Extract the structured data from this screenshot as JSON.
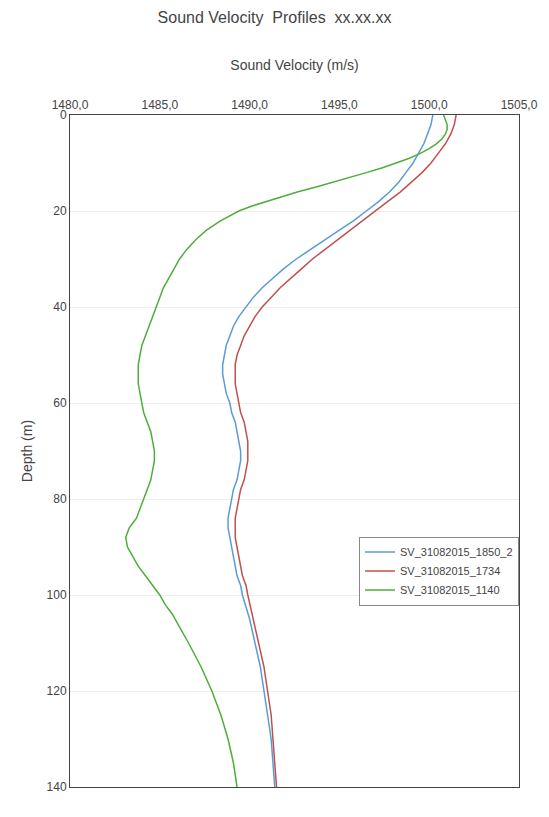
{
  "chart_data": {
    "type": "line",
    "title": "Sound Velocity  Profiles  xx.xx.xx",
    "xlabel": "Sound Velocity (m/s)",
    "ylabel": "Depth (m)",
    "xlim": [
      1480.0,
      1505.0
    ],
    "xticks": [
      {
        "value": 1480.0,
        "label": "1480,0"
      },
      {
        "value": 1485.0,
        "label": "1485,0"
      },
      {
        "value": 1490.0,
        "label": "1490,0"
      },
      {
        "value": 1495.0,
        "label": "1495,0"
      },
      {
        "value": 1500.0,
        "label": "1500,0"
      },
      {
        "value": 1505.0,
        "label": "1505,0"
      }
    ],
    "ylim": [
      140,
      0
    ],
    "yticks": [
      0,
      20,
      40,
      60,
      80,
      100,
      120,
      140
    ],
    "grid": "y",
    "legend": "lower right",
    "series": [
      {
        "name": "SV_31082015_1850_2",
        "color": "#5B9BD5",
        "x": [
          1500.2,
          1500.1,
          1499.9,
          1499.7,
          1499.4,
          1499.1,
          1498.7,
          1498.3,
          1497.8,
          1497.2,
          1496.5,
          1495.8,
          1495.0,
          1494.2,
          1493.4,
          1492.6,
          1491.9,
          1491.3,
          1490.7,
          1490.2,
          1489.8,
          1489.4,
          1489.1,
          1488.9,
          1488.7,
          1488.6,
          1488.5,
          1488.5,
          1488.6,
          1488.7,
          1488.9,
          1489.0,
          1489.2,
          1489.3,
          1489.4,
          1489.5,
          1489.5,
          1489.4,
          1489.3,
          1489.1,
          1489.0,
          1488.9,
          1488.8,
          1488.8,
          1488.9,
          1489.0,
          1489.1,
          1489.2,
          1489.3,
          1489.5,
          1489.6,
          1490.0,
          1490.3,
          1490.6,
          1490.8,
          1491.0,
          1491.2,
          1491.3,
          1491.4
        ],
        "values": [
          0,
          2,
          4,
          6,
          8,
          10,
          12,
          14,
          16,
          18,
          20,
          22,
          24,
          26,
          28,
          30,
          32,
          34,
          36,
          38,
          40,
          42,
          44,
          46,
          48,
          50,
          52,
          54,
          56,
          58,
          60,
          62,
          64,
          66,
          68,
          70,
          72,
          74,
          76,
          78,
          80,
          82,
          84,
          86,
          88,
          90,
          92,
          94,
          96,
          98,
          100,
          105,
          110,
          115,
          120,
          125,
          130,
          135,
          140
        ]
      },
      {
        "name": "SV_31082015_1734",
        "color": "#C0504D",
        "x": [
          1501.5,
          1501.4,
          1501.2,
          1500.9,
          1500.5,
          1500.1,
          1499.6,
          1499.0,
          1498.4,
          1497.7,
          1497.0,
          1496.3,
          1495.6,
          1494.9,
          1494.2,
          1493.5,
          1492.9,
          1492.3,
          1491.7,
          1491.2,
          1490.7,
          1490.3,
          1490.0,
          1489.7,
          1489.5,
          1489.3,
          1489.2,
          1489.2,
          1489.2,
          1489.3,
          1489.4,
          1489.5,
          1489.7,
          1489.8,
          1489.9,
          1489.9,
          1489.9,
          1489.8,
          1489.7,
          1489.5,
          1489.4,
          1489.3,
          1489.2,
          1489.2,
          1489.2,
          1489.3,
          1489.4,
          1489.5,
          1489.6,
          1489.8,
          1489.9,
          1490.2,
          1490.5,
          1490.8,
          1491.0,
          1491.2,
          1491.3,
          1491.4,
          1491.5
        ],
        "values": [
          0,
          2,
          4,
          6,
          8,
          10,
          12,
          14,
          16,
          18,
          20,
          22,
          24,
          26,
          28,
          30,
          32,
          34,
          36,
          38,
          40,
          42,
          44,
          46,
          48,
          50,
          52,
          54,
          56,
          58,
          60,
          62,
          64,
          66,
          68,
          70,
          72,
          74,
          76,
          78,
          80,
          82,
          84,
          86,
          88,
          90,
          92,
          94,
          96,
          98,
          100,
          105,
          110,
          115,
          120,
          125,
          130,
          135,
          140
        ]
      },
      {
        "name": "SV_31082015_1140",
        "color": "#4EAE3B",
        "x": [
          1500.8,
          1500.9,
          1501.0,
          1501.0,
          1500.9,
          1500.7,
          1500.4,
          1500.0,
          1499.5,
          1498.9,
          1498.2,
          1497.4,
          1496.5,
          1495.6,
          1494.6,
          1493.7,
          1492.7,
          1491.8,
          1490.9,
          1490.1,
          1489.4,
          1488.4,
          1487.6,
          1487.0,
          1486.5,
          1486.1,
          1485.8,
          1485.5,
          1485.2,
          1485.0,
          1484.8,
          1484.6,
          1484.4,
          1484.2,
          1484.0,
          1483.9,
          1483.8,
          1483.8,
          1483.8,
          1483.9,
          1484.0,
          1484.1,
          1484.3,
          1484.5,
          1484.6,
          1484.7,
          1484.7,
          1484.6,
          1484.5,
          1484.3,
          1484.1,
          1483.9,
          1483.7,
          1483.5,
          1483.3,
          1483.1,
          1483.2,
          1483.5,
          1483.8,
          1484.2,
          1484.6,
          1485.0,
          1485.3,
          1485.7,
          1486.0,
          1486.3,
          1486.6,
          1487.3,
          1487.9,
          1488.4,
          1488.8,
          1489.1,
          1489.3
        ],
        "values": [
          0,
          1,
          2,
          3,
          4,
          5,
          6,
          7,
          8,
          9,
          10,
          11,
          12,
          13,
          14,
          15,
          16,
          17,
          18,
          19,
          20,
          22,
          24,
          26,
          28,
          30,
          32,
          34,
          36,
          38,
          40,
          42,
          44,
          46,
          48,
          50,
          52,
          54,
          56,
          58,
          60,
          62,
          64,
          66,
          68,
          70,
          72,
          74,
          76,
          78,
          80,
          82,
          84,
          85,
          86,
          88,
          90,
          92,
          94,
          96,
          98,
          100,
          102,
          104,
          106,
          108,
          110,
          115,
          120,
          125,
          130,
          135,
          140
        ]
      }
    ]
  }
}
